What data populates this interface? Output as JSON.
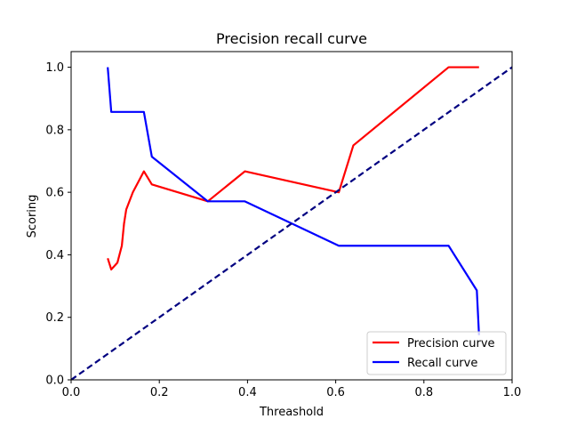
{
  "chart_data": {
    "type": "line",
    "title": "Precision recall curve",
    "xlabel": "Threashold",
    "ylabel": "Scoring",
    "xlim": [
      0.0,
      1.0
    ],
    "ylim": [
      0.0,
      1.05
    ],
    "xticks": [
      "0.0",
      "0.2",
      "0.4",
      "0.6",
      "0.8",
      "1.0"
    ],
    "yticks": [
      "0.0",
      "0.2",
      "0.4",
      "0.6",
      "0.8",
      "1.0"
    ],
    "grid": false,
    "legend_position": "lower-right",
    "series": [
      {
        "name": "Precision curve",
        "color": "#ff0000",
        "style": "solid",
        "x": [
          0.083,
          0.091,
          0.105,
          0.115,
          0.12,
          0.125,
          0.14,
          0.165,
          0.183,
          0.31,
          0.394,
          0.607,
          0.64,
          0.856,
          0.925
        ],
        "y": [
          0.389,
          0.353,
          0.375,
          0.429,
          0.5,
          0.545,
          0.6,
          0.667,
          0.625,
          0.571,
          0.667,
          0.6,
          0.75,
          1.0,
          1.0
        ]
      },
      {
        "name": "Recall curve",
        "color": "#0000ff",
        "style": "solid",
        "x": [
          0.083,
          0.091,
          0.165,
          0.183,
          0.31,
          0.394,
          0.607,
          0.856,
          0.92,
          0.925
        ],
        "y": [
          1.0,
          0.857,
          0.857,
          0.714,
          0.571,
          0.571,
          0.429,
          0.429,
          0.286,
          0.143
        ]
      },
      {
        "name": "",
        "color": "#000080",
        "style": "dashed",
        "x": [
          0.0,
          1.0
        ],
        "y": [
          0.0,
          1.0
        ]
      }
    ]
  }
}
